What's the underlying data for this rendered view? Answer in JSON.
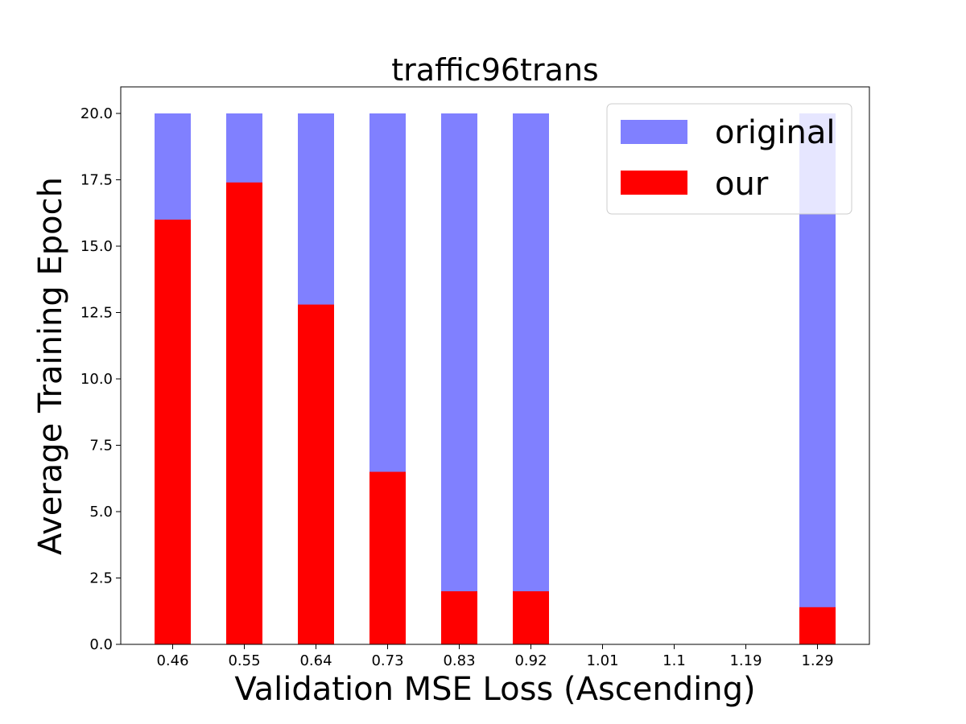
{
  "chart_data": {
    "type": "bar",
    "stacked": false,
    "overlay": true,
    "title": "traffic96trans",
    "xlabel": "Validation MSE Loss (Ascending)",
    "ylabel": "Average Training Epoch",
    "categories": [
      "0.46",
      "0.55",
      "0.64",
      "0.73",
      "0.83",
      "0.92",
      "1.01",
      "1.1",
      "1.19",
      "1.29"
    ],
    "ylim": [
      0,
      21
    ],
    "yticks": [
      "0.0",
      "2.5",
      "5.0",
      "7.5",
      "10.0",
      "12.5",
      "15.0",
      "17.5",
      "20.0"
    ],
    "series": [
      {
        "name": "original",
        "color": "#8080ff",
        "values": [
          20,
          20,
          20,
          20,
          20,
          20,
          0,
          0,
          0,
          20
        ]
      },
      {
        "name": "our",
        "color": "#ff0000",
        "values": [
          16.0,
          17.4,
          12.8,
          6.5,
          2.0,
          2.0,
          0,
          0,
          0,
          1.4
        ]
      }
    ],
    "legend": {
      "position": "top-right"
    },
    "grid": false
  }
}
